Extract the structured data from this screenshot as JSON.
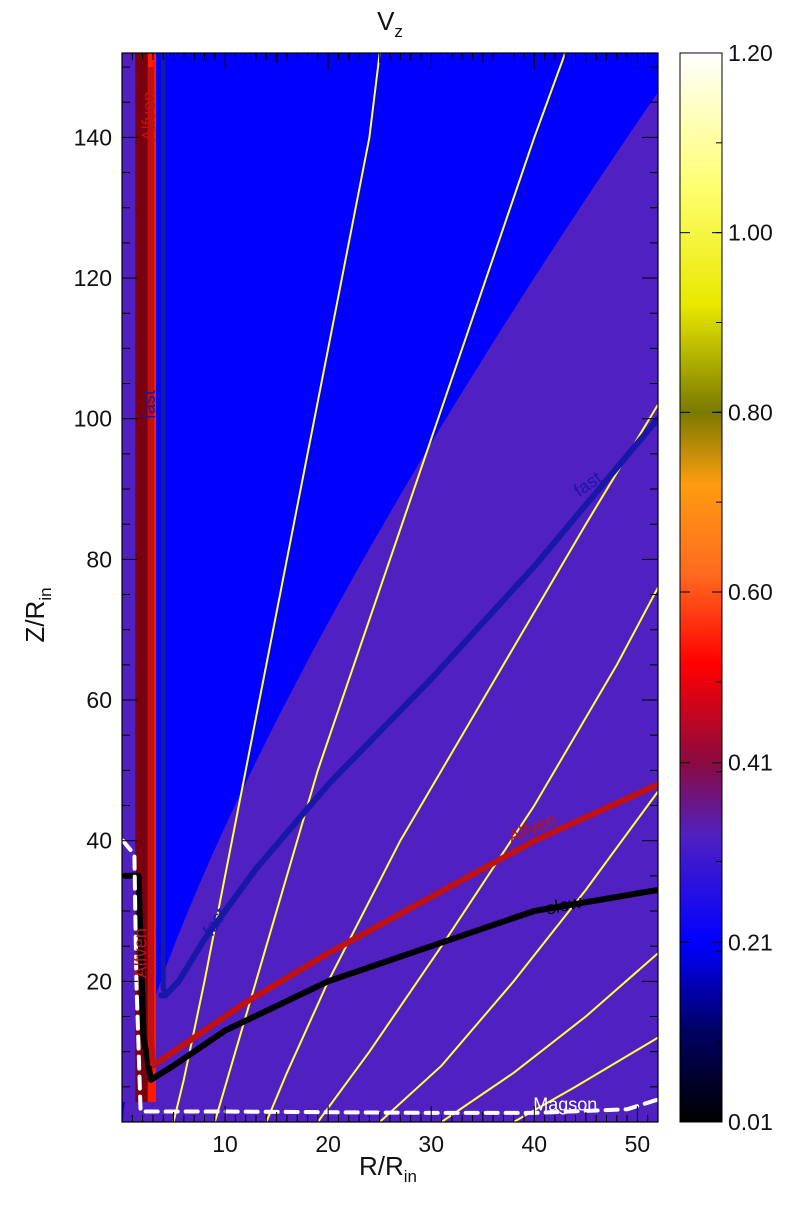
{
  "chart_data": {
    "type": "heatmap",
    "title": "V",
    "title_subscript": "z",
    "xlabel": "R/R",
    "xlabel_subscript": "in",
    "ylabel": "Z/R",
    "ylabel_subscript": "in",
    "xlim": [
      0,
      52
    ],
    "ylim": [
      0,
      152
    ],
    "x_ticks": [
      10,
      20,
      30,
      40,
      50
    ],
    "y_ticks": [
      20,
      40,
      60,
      80,
      100,
      120,
      140
    ],
    "colorbar": {
      "range": [
        0.01,
        1.2
      ],
      "tick_labels": [
        "0.01",
        "0.21",
        "0.41",
        "0.60",
        "0.80",
        "1.00",
        "1.20"
      ],
      "tick_values": [
        0.01,
        0.21,
        0.41,
        0.6,
        0.8,
        1.0,
        1.2
      ],
      "colors": [
        {
          "v": 0.01,
          "c": "#000000"
        },
        {
          "v": 0.11,
          "c": "#000060"
        },
        {
          "v": 0.21,
          "c": "#0000ff"
        },
        {
          "v": 0.33,
          "c": "#5020c0"
        },
        {
          "v": 0.41,
          "c": "#8a0a40"
        },
        {
          "v": 0.52,
          "c": "#ff0000"
        },
        {
          "v": 0.62,
          "c": "#ff6a20"
        },
        {
          "v": 0.72,
          "c": "#ff9c10"
        },
        {
          "v": 0.8,
          "c": "#7a7a00"
        },
        {
          "v": 0.92,
          "c": "#e8e800"
        },
        {
          "v": 1.05,
          "c": "#ffff70"
        },
        {
          "v": 1.2,
          "c": "#ffffff"
        }
      ]
    },
    "field_lines": {
      "color": "#ffff40",
      "lines": [
        [
          [
            5,
            0
          ],
          [
            6,
            6
          ],
          [
            8,
            20
          ],
          [
            12,
            50
          ],
          [
            16,
            80
          ],
          [
            20,
            110
          ],
          [
            24,
            140
          ],
          [
            25,
            152
          ]
        ],
        [
          [
            9,
            0
          ],
          [
            11,
            10
          ],
          [
            14,
            25
          ],
          [
            19,
            50
          ],
          [
            26,
            80
          ],
          [
            33,
            110
          ],
          [
            40,
            140
          ],
          [
            43,
            152
          ]
        ],
        [
          [
            14,
            0
          ],
          [
            16,
            7
          ],
          [
            20,
            20
          ],
          [
            27,
            40
          ],
          [
            35,
            60
          ],
          [
            45,
            85
          ],
          [
            52,
            102
          ]
        ],
        [
          [
            19,
            0
          ],
          [
            24,
            10
          ],
          [
            31,
            25
          ],
          [
            40,
            45
          ],
          [
            48,
            65
          ],
          [
            52,
            76
          ]
        ],
        [
          [
            25,
            0
          ],
          [
            31,
            8
          ],
          [
            38,
            20
          ],
          [
            45,
            33
          ],
          [
            52,
            47
          ]
        ],
        [
          [
            31,
            0
          ],
          [
            38,
            7
          ],
          [
            45,
            15
          ],
          [
            52,
            24
          ]
        ],
        [
          [
            38,
            0
          ],
          [
            44,
            5
          ],
          [
            52,
            12
          ]
        ]
      ]
    },
    "series": [
      {
        "name": "fast",
        "color": "#1818a8",
        "labels": [
          {
            "text": "fast",
            "x": 9.5,
            "y": 28,
            "angle": -58
          },
          {
            "text": "fast",
            "x": 45.5,
            "y": 90,
            "angle": -35
          },
          {
            "text": "fast",
            "x": 3.2,
            "y": 102,
            "angle": -90
          }
        ],
        "x": [
          3.8,
          4.2,
          5.5,
          8,
          13,
          20,
          30,
          40,
          52
        ],
        "y": [
          18,
          18,
          20,
          26,
          36,
          48,
          63,
          79,
          100
        ]
      },
      {
        "name": "Alfven",
        "color": "#c01010",
        "labels": [
          {
            "text": "Alfven",
            "x": 40,
            "y": 41,
            "angle": -22
          },
          {
            "text": "Alfven",
            "x": 2.4,
            "y": 24,
            "angle": -90
          },
          {
            "text": "Alfven",
            "x": 3.2,
            "y": 143,
            "angle": -90
          }
        ],
        "x": [
          3,
          6,
          12,
          20,
          30,
          40,
          52
        ],
        "y": [
          8,
          11,
          17,
          24,
          32,
          40,
          48
        ]
      },
      {
        "name": "slow",
        "color": "#000000",
        "labels": [
          {
            "text": "slow",
            "x": 43,
            "y": 30,
            "angle": -12
          }
        ],
        "x": [
          0.3,
          1.6,
          2.1,
          2.8,
          5,
          10,
          20,
          30,
          40,
          52
        ],
        "y": [
          35,
          35,
          12,
          6,
          8,
          13,
          20,
          25,
          30,
          33
        ]
      },
      {
        "name": "Magson",
        "color": "#ffffff",
        "labels": [
          {
            "text": "Magson",
            "x": 43,
            "y": 1.6,
            "angle": 0
          }
        ],
        "x": [
          0.1,
          1.2,
          1.4,
          1.8,
          10,
          20,
          30,
          40,
          49,
          52
        ],
        "y": [
          40,
          38,
          20,
          1.5,
          1.5,
          1.4,
          1.3,
          1.3,
          1.8,
          3.2
        ]
      }
    ]
  }
}
